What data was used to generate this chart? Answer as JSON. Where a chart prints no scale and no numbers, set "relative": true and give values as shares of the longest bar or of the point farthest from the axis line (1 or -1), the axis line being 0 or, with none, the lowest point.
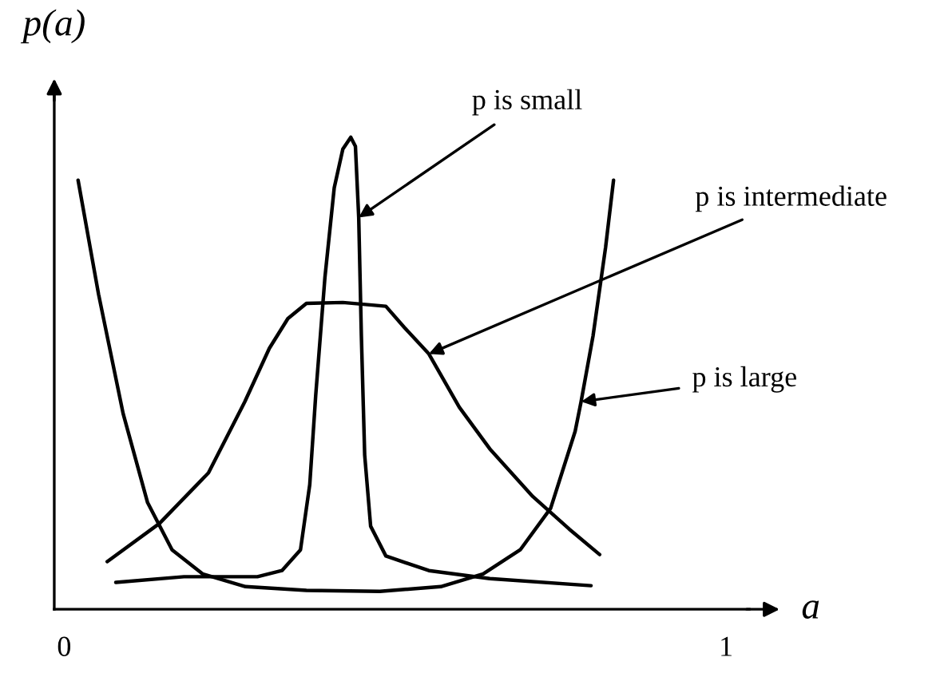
{
  "chart_data": {
    "type": "line",
    "relative": true,
    "xlabel": "a",
    "ylabel": "p(a)",
    "xlim": [
      -0.015,
      1.035
    ],
    "xticks": [
      0,
      1
    ],
    "grid": false,
    "legend": false,
    "marker": "none",
    "line_style": "solid",
    "series": [
      {
        "color": "#000000",
        "x": [
          0.078,
          0.181,
          0.292,
          0.329,
          0.357,
          0.371,
          0.38,
          0.394,
          0.408,
          0.421,
          0.433,
          0.44,
          0.445,
          0.449,
          0.454,
          0.463,
          0.486,
          0.551,
          0.643,
          0.796
        ],
        "values": [
          0.057,
          0.069,
          0.069,
          0.082,
          0.126,
          0.264,
          0.453,
          0.704,
          0.893,
          0.975,
          1,
          0.981,
          0.83,
          0.579,
          0.327,
          0.176,
          0.113,
          0.082,
          0.065,
          0.05
        ]
      },
      {
        "color": "#000000",
        "x": [
          0.065,
          0.144,
          0.218,
          0.273,
          0.31,
          0.338,
          0.366,
          0.421,
          0.486,
          0.514,
          0.551,
          0.597,
          0.643,
          0.708,
          0.763,
          0.809
        ],
        "values": [
          0.101,
          0.182,
          0.289,
          0.44,
          0.553,
          0.616,
          0.648,
          0.65,
          0.642,
          0.597,
          0.541,
          0.428,
          0.34,
          0.239,
          0.17,
          0.116
        ]
      },
      {
        "color": "#000000",
        "x": [
          0.021,
          0.052,
          0.089,
          0.126,
          0.163,
          0.209,
          0.274,
          0.366,
          0.477,
          0.569,
          0.633,
          0.689,
          0.735,
          0.772,
          0.781,
          0.799,
          0.818,
          0.83
        ],
        "values": [
          0.909,
          0.667,
          0.415,
          0.226,
          0.126,
          0.075,
          0.048,
          0.04,
          0.038,
          0.048,
          0.075,
          0.126,
          0.214,
          0.377,
          0.44,
          0.579,
          0.767,
          0.909
        ]
      }
    ],
    "annotations": [
      {
        "text": "p is small",
        "x": 0.445,
        "y": 0.83
      },
      {
        "text": "p is intermediate",
        "x": 0.551,
        "y": 0.541
      },
      {
        "text": "p is large",
        "x": 0.781,
        "y": 0.44
      }
    ]
  }
}
